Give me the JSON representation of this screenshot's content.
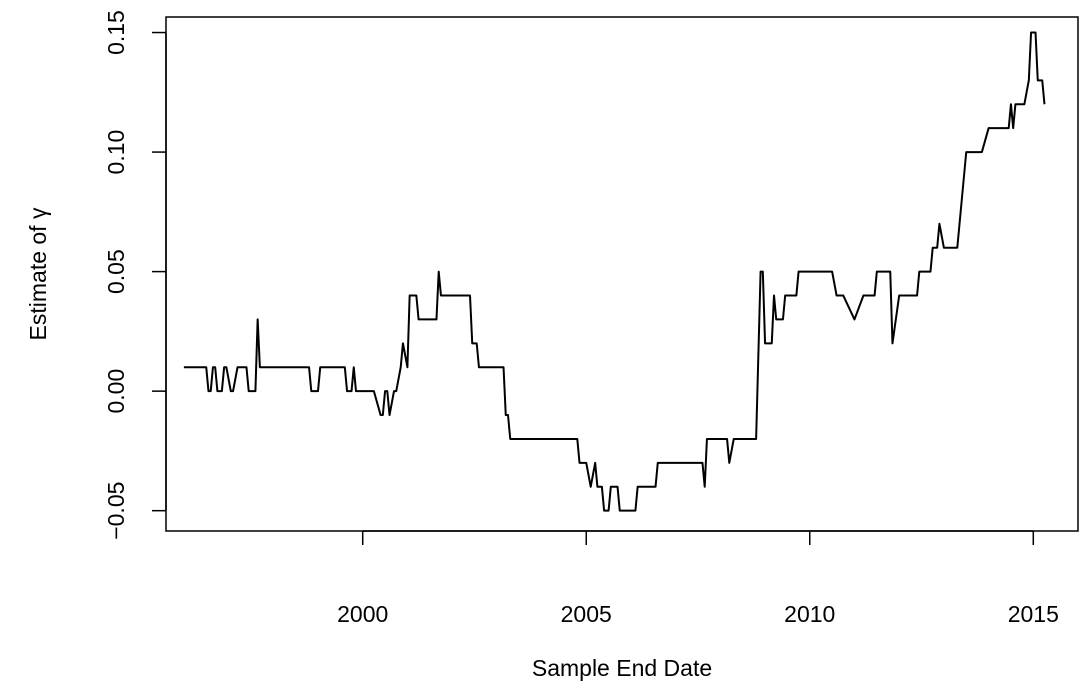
{
  "chart_data": {
    "type": "line",
    "title": "",
    "xlabel": "Sample End Date",
    "ylabel": "Estimate of γ",
    "xlim": [
      1995.6,
      2016.0
    ],
    "ylim": [
      -0.0585,
      0.1565
    ],
    "grid": false,
    "legend": "none",
    "line_color": "#000000",
    "x_ticks": [
      2000,
      2005,
      2010,
      2015
    ],
    "x_tick_labels": [
      "2000",
      "2005",
      "2010",
      "2015"
    ],
    "y_ticks": [
      -0.05,
      0.0,
      0.05,
      0.1,
      0.15
    ],
    "y_tick_labels": [
      "−0.05",
      "0.00",
      "0.05",
      "0.10",
      "0.15"
    ],
    "series": [
      {
        "x": [
          1996.0,
          1996.5,
          1996.55,
          1996.6,
          1996.65,
          1996.7,
          1996.75,
          1996.85,
          1996.9,
          1996.95,
          1997.05,
          1997.1,
          1997.2,
          1997.25,
          1997.4,
          1997.45,
          1997.55,
          1997.6,
          1997.65,
          1997.7,
          1997.85,
          1998.0,
          1998.2,
          1998.4,
          1998.6,
          1998.8,
          1998.85,
          1999.0,
          1999.05,
          1999.3,
          1999.5,
          1999.6,
          1999.65,
          1999.75,
          1999.8,
          1999.85,
          2000.0,
          2000.2,
          2000.25,
          2000.4,
          2000.45,
          2000.5,
          2000.55,
          2000.6,
          2000.7,
          2000.75,
          2000.85,
          2000.9,
          2001.0,
          2001.05,
          2001.2,
          2001.25,
          2001.6,
          2001.65,
          2001.7,
          2001.75,
          2001.9,
          2002.0,
          2002.2,
          2002.4,
          2002.45,
          2002.55,
          2002.6,
          2002.75,
          2003.0,
          2003.1,
          2003.15,
          2003.2,
          2003.25,
          2003.3,
          2003.4,
          2003.5,
          2003.7,
          2004.0,
          2004.3,
          2004.5,
          2004.75,
          2004.8,
          2004.85,
          2004.9,
          2005.0,
          2005.1,
          2005.2,
          2005.25,
          2005.3,
          2005.35,
          2005.4,
          2005.5,
          2005.55,
          2005.6,
          2005.65,
          2005.7,
          2005.75,
          2005.8,
          2005.9,
          2006.0,
          2006.1,
          2006.15,
          2006.2,
          2006.5,
          2006.55,
          2006.6,
          2006.8,
          2007.0,
          2007.2,
          2007.5,
          2007.55,
          2007.6,
          2007.65,
          2007.7,
          2008.0,
          2008.1,
          2008.15,
          2008.2,
          2008.3,
          2008.5,
          2008.75,
          2008.8,
          2008.9,
          2008.95,
          2009.0,
          2009.1,
          2009.15,
          2009.2,
          2009.25,
          2009.3,
          2009.4,
          2009.45,
          2009.6,
          2009.7,
          2009.75,
          2009.8,
          2010.0,
          2010.2,
          2010.35,
          2010.4,
          2010.5,
          2010.6,
          2010.65,
          2010.7,
          2010.75,
          2011.0,
          2011.2,
          2011.25,
          2011.3,
          2011.45,
          2011.5,
          2011.6,
          2011.65,
          2011.7,
          2011.8,
          2011.85,
          2012.0,
          2012.1,
          2012.4,
          2012.45,
          2012.6,
          2012.7,
          2012.75,
          2012.8,
          2012.85,
          2012.9,
          2013.0,
          2013.1,
          2013.15,
          2013.3,
          2013.5,
          2013.7,
          2013.8,
          2013.85,
          2014.0,
          2014.2,
          2014.35,
          2014.4,
          2014.45,
          2014.5,
          2014.55,
          2014.6,
          2014.7,
          2014.75,
          2014.8,
          2014.9,
          2014.95,
          2015.0,
          2015.05,
          2015.1,
          2015.15,
          2015.2,
          2015.25
        ],
        "y": [
          0.01,
          0.01,
          0.0,
          0.0,
          0.01,
          0.01,
          0.0,
          0.0,
          0.01,
          0.01,
          0.0,
          0.0,
          0.01,
          0.01,
          0.01,
          0.0,
          0.0,
          0.0,
          0.03,
          0.01,
          0.01,
          0.01,
          0.01,
          0.01,
          0.01,
          0.01,
          0.0,
          0.0,
          0.01,
          0.01,
          0.01,
          0.01,
          0.0,
          0.0,
          0.01,
          0.0,
          0.0,
          0.0,
          0.0,
          -0.01,
          -0.01,
          0.0,
          0.0,
          -0.01,
          0.0,
          0.0,
          0.01,
          0.02,
          0.01,
          0.04,
          0.04,
          0.03,
          0.03,
          0.03,
          0.05,
          0.04,
          0.04,
          0.04,
          0.04,
          0.04,
          0.02,
          0.02,
          0.01,
          0.01,
          0.01,
          0.01,
          0.01,
          -0.01,
          -0.01,
          -0.02,
          -0.02,
          -0.02,
          -0.02,
          -0.02,
          -0.02,
          -0.02,
          -0.02,
          -0.02,
          -0.03,
          -0.03,
          -0.03,
          -0.04,
          -0.03,
          -0.04,
          -0.04,
          -0.04,
          -0.05,
          -0.05,
          -0.04,
          -0.04,
          -0.04,
          -0.04,
          -0.05,
          -0.05,
          -0.05,
          -0.05,
          -0.05,
          -0.04,
          -0.04,
          -0.04,
          -0.04,
          -0.03,
          -0.03,
          -0.03,
          -0.03,
          -0.03,
          -0.03,
          -0.03,
          -0.04,
          -0.02,
          -0.02,
          -0.02,
          -0.02,
          -0.03,
          -0.02,
          -0.02,
          -0.02,
          -0.02,
          0.05,
          0.05,
          0.02,
          0.02,
          0.02,
          0.04,
          0.03,
          0.03,
          0.03,
          0.04,
          0.04,
          0.04,
          0.05,
          0.05,
          0.05,
          0.05,
          0.05,
          0.05,
          0.05,
          0.04,
          0.04,
          0.04,
          0.04,
          0.03,
          0.04,
          0.04,
          0.04,
          0.04,
          0.05,
          0.05,
          0.05,
          0.05,
          0.05,
          0.02,
          0.04,
          0.04,
          0.04,
          0.05,
          0.05,
          0.05,
          0.06,
          0.06,
          0.06,
          0.07,
          0.06,
          0.06,
          0.06,
          0.06,
          0.1,
          0.1,
          0.1,
          0.1,
          0.11,
          0.11,
          0.11,
          0.11,
          0.11,
          0.12,
          0.11,
          0.12,
          0.12,
          0.12,
          0.12,
          0.13,
          0.15,
          0.15,
          0.15,
          0.13,
          0.13,
          0.13,
          0.12
        ]
      }
    ]
  }
}
